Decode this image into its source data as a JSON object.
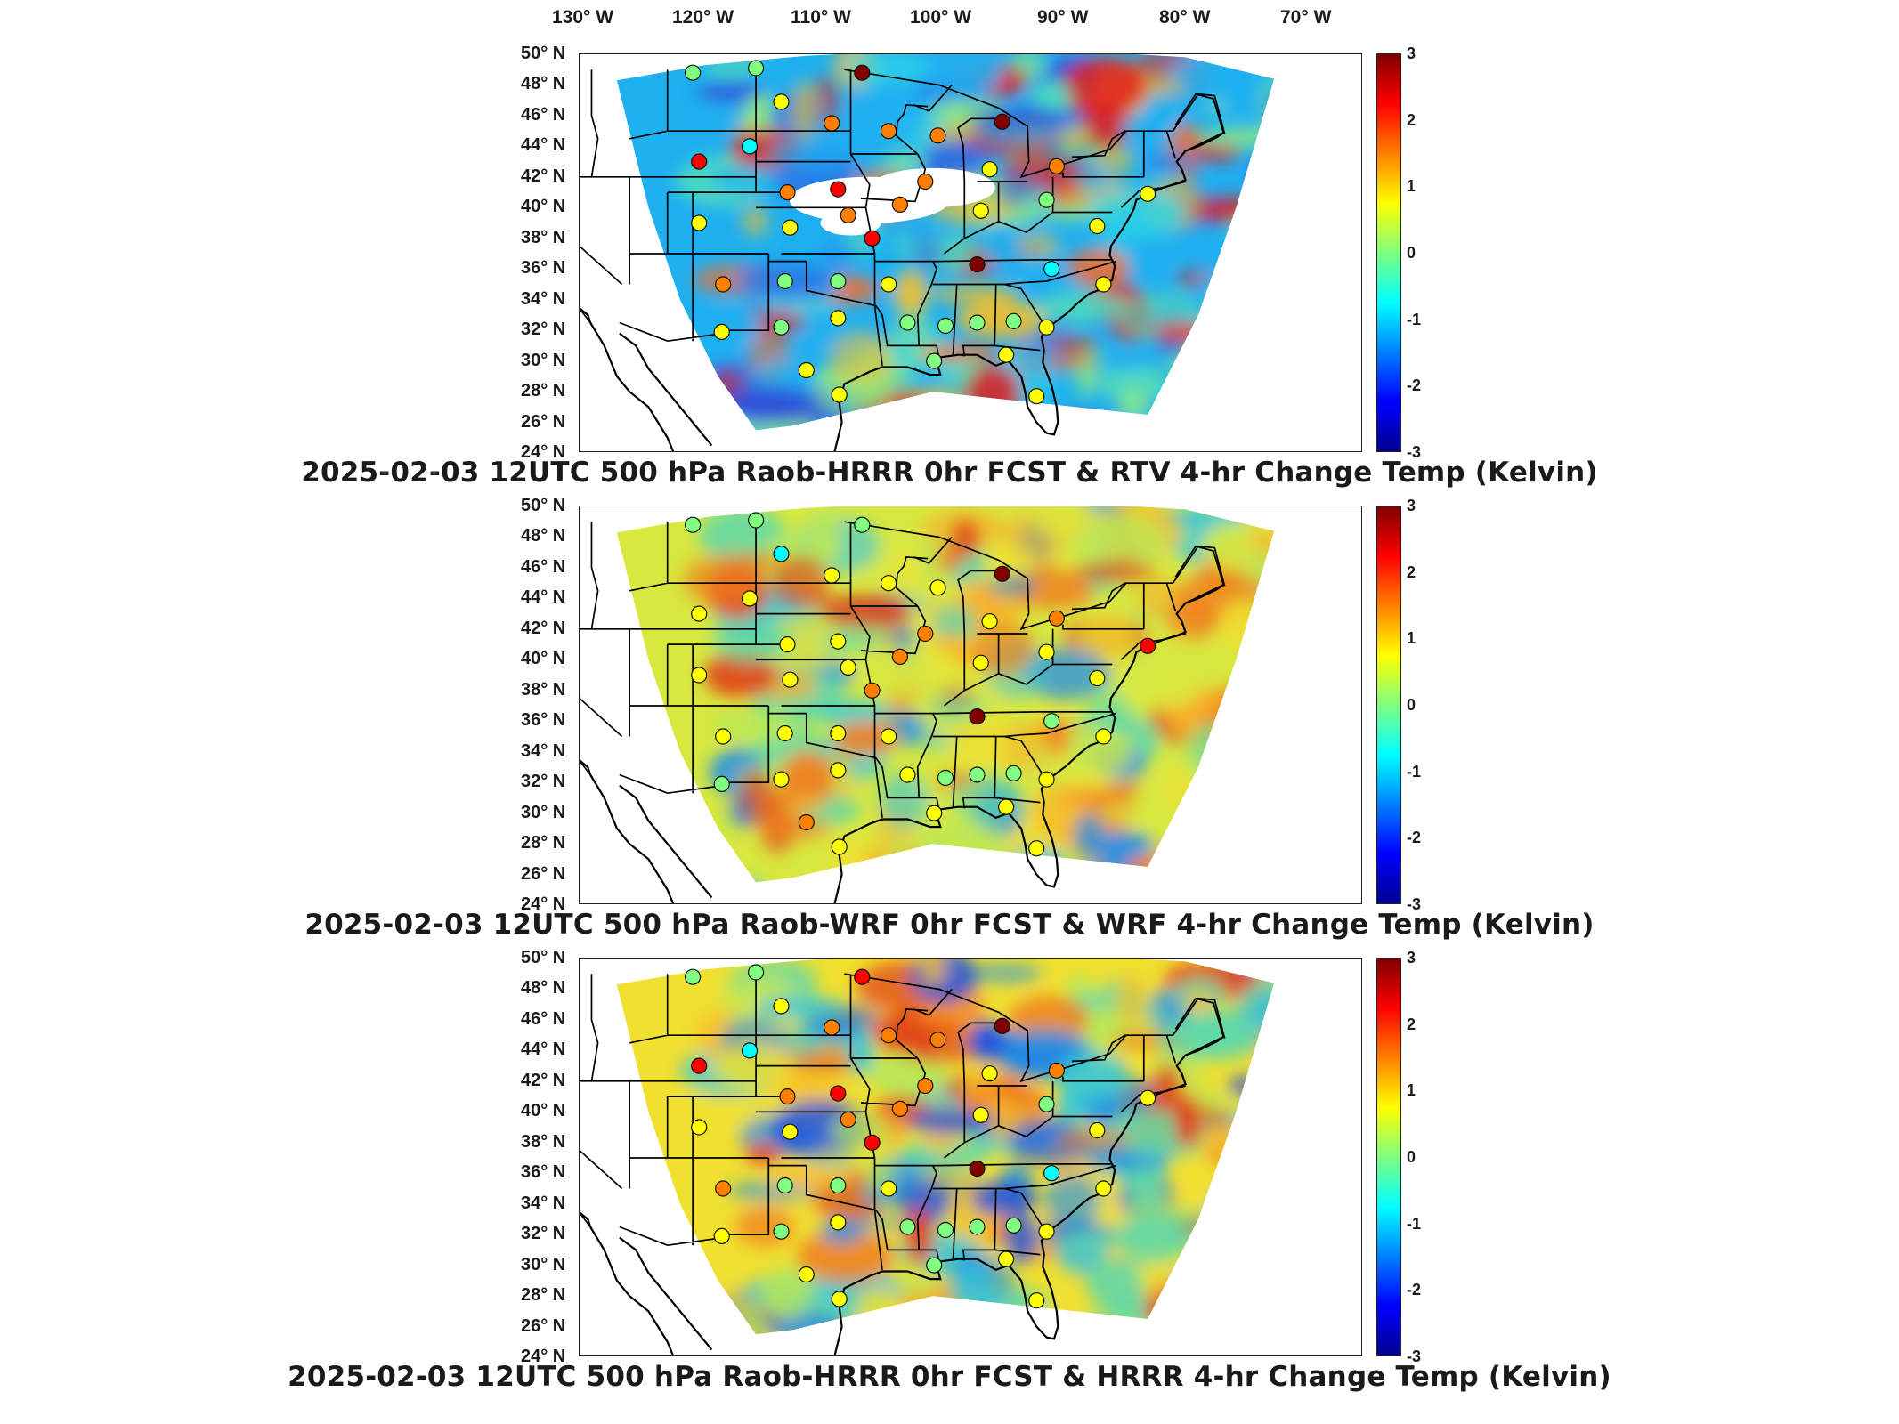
{
  "longitude_labels": [
    "130° W",
    "120° W",
    "110° W",
    "100° W",
    "90° W",
    "80° W",
    "70° W"
  ],
  "latitude_labels": [
    "50° N",
    "48° N",
    "46° N",
    "44° N",
    "42° N",
    "40° N",
    "38° N",
    "36° N",
    "34° N",
    "32° N",
    "30° N",
    "28° N",
    "26° N",
    "24° N"
  ],
  "colorbar": {
    "ticks": [
      "3",
      "2",
      "1",
      "0",
      "-1",
      "-2",
      "-3"
    ],
    "range": [
      -3,
      3
    ],
    "colormap": [
      "#00008f",
      "#0000ff",
      "#0080ff",
      "#00ffff",
      "#80ff80",
      "#ffff00",
      "#ff8000",
      "#ff0000",
      "#800000"
    ]
  },
  "panels": [
    {
      "title": "2025-02-03 12UTC 500 hPa Raob-HRRR 0hr FCST & RTV 4-hr Change Temp (Kelvin)",
      "background_palette": [
        "#1fb0f0",
        "#2cd4e6",
        "#58e0b4",
        "#8ee882",
        "#2a78e8",
        "#3050d8",
        "#f0c030",
        "#f07030",
        "#e02020"
      ],
      "white_void": true,
      "stations": [
        {
          "lon": -109,
          "lat": 48.8,
          "value": -0.2
        },
        {
          "lon": -104,
          "lat": 49.1,
          "value": 0.2
        },
        {
          "lon": -95.6,
          "lat": 48.8,
          "value": 2.8
        },
        {
          "lon": -102,
          "lat": 46.9,
          "value": 1.0
        },
        {
          "lon": -98,
          "lat": 45.5,
          "value": 1.6
        },
        {
          "lon": -93.5,
          "lat": 45.0,
          "value": 1.8
        },
        {
          "lon": -104.5,
          "lat": 44.0,
          "value": -0.8
        },
        {
          "lon": -108.5,
          "lat": 43.0,
          "value": 2.0
        },
        {
          "lon": -101.5,
          "lat": 41.0,
          "value": 1.8
        },
        {
          "lon": -97.5,
          "lat": 41.2,
          "value": 2.4
        },
        {
          "lon": -89.6,
          "lat": 44.7,
          "value": 1.2
        },
        {
          "lon": -84.5,
          "lat": 45.6,
          "value": 3.0
        },
        {
          "lon": -85.5,
          "lat": 42.5,
          "value": 1.0
        },
        {
          "lon": -80.2,
          "lat": 42.7,
          "value": 1.4
        },
        {
          "lon": -90.6,
          "lat": 41.7,
          "value": 1.4
        },
        {
          "lon": -86.2,
          "lat": 39.8,
          "value": 0.7
        },
        {
          "lon": -92.6,
          "lat": 40.2,
          "value": 1.8
        },
        {
          "lon": -96.7,
          "lat": 39.5,
          "value": 1.6
        },
        {
          "lon": -101.3,
          "lat": 38.7,
          "value": 0.8
        },
        {
          "lon": -94.8,
          "lat": 38.0,
          "value": 1.9
        },
        {
          "lon": -108.5,
          "lat": 39.0,
          "value": 1.0
        },
        {
          "lon": -81.0,
          "lat": 40.5,
          "value": 0.0
        },
        {
          "lon": -77.0,
          "lat": 38.8,
          "value": 0.4
        },
        {
          "lon": -86.5,
          "lat": 36.3,
          "value": 3.0
        },
        {
          "lon": -80.6,
          "lat": 36.0,
          "value": -0.4
        },
        {
          "lon": -93.5,
          "lat": 35.0,
          "value": 0.8
        },
        {
          "lon": -97.5,
          "lat": 35.2,
          "value": -0.3
        },
        {
          "lon": -101.7,
          "lat": 35.2,
          "value": -0.1
        },
        {
          "lon": -106.6,
          "lat": 35.0,
          "value": 1.6
        },
        {
          "lon": -97.5,
          "lat": 32.8,
          "value": 0.4
        },
        {
          "lon": -102,
          "lat": 32.2,
          "value": 0.2
        },
        {
          "lon": -106.7,
          "lat": 31.9,
          "value": 0.6
        },
        {
          "lon": -92.0,
          "lat": 32.5,
          "value": 0.3
        },
        {
          "lon": -89.0,
          "lat": 32.3,
          "value": -0.2
        },
        {
          "lon": -86.5,
          "lat": 32.5,
          "value": -0.1
        },
        {
          "lon": -83.6,
          "lat": 32.6,
          "value": 0.1
        },
        {
          "lon": -81.0,
          "lat": 32.2,
          "value": 0.9
        },
        {
          "lon": -84.2,
          "lat": 30.4,
          "value": 1.0
        },
        {
          "lon": -100,
          "lat": 29.4,
          "value": 0.8
        },
        {
          "lon": -97.4,
          "lat": 27.8,
          "value": 1.0
        },
        {
          "lon": -81.8,
          "lat": 27.7,
          "value": 0.8
        },
        {
          "lon": -89.9,
          "lat": 30.0,
          "value": 0.2
        },
        {
          "lon": -76.5,
          "lat": 35.0,
          "value": 0.6
        },
        {
          "lon": -73.0,
          "lat": 40.9,
          "value": 0.4
        }
      ]
    },
    {
      "title": "2025-02-03 12UTC 500 hPa Raob-WRF 0hr FCST & WRF 4-hr Change Temp (Kelvin)",
      "background_palette": [
        "#d8e840",
        "#f0e030",
        "#f8b028",
        "#f08020",
        "#e04018",
        "#b8e858",
        "#60d8a8",
        "#38c8d8",
        "#2090e8"
      ],
      "white_void": false,
      "stations": [
        {
          "lon": -109,
          "lat": 48.8,
          "value": 0.2
        },
        {
          "lon": -104,
          "lat": 49.1,
          "value": -0.3
        },
        {
          "lon": -95.6,
          "lat": 48.8,
          "value": 0.0
        },
        {
          "lon": -102,
          "lat": 46.9,
          "value": -1.0
        },
        {
          "lon": -98,
          "lat": 45.5,
          "value": 0.4
        },
        {
          "lon": -93.5,
          "lat": 45.0,
          "value": 0.6
        },
        {
          "lon": -104.5,
          "lat": 44.0,
          "value": 0.4
        },
        {
          "lon": -108.5,
          "lat": 43.0,
          "value": 0.4
        },
        {
          "lon": -101.5,
          "lat": 41.0,
          "value": 0.6
        },
        {
          "lon": -97.5,
          "lat": 41.2,
          "value": 1.0
        },
        {
          "lon": -89.6,
          "lat": 44.7,
          "value": 0.4
        },
        {
          "lon": -84.5,
          "lat": 45.6,
          "value": 3.0
        },
        {
          "lon": -85.5,
          "lat": 42.5,
          "value": 0.8
        },
        {
          "lon": -80.2,
          "lat": 42.7,
          "value": 1.6
        },
        {
          "lon": -90.6,
          "lat": 41.7,
          "value": 1.2
        },
        {
          "lon": -86.2,
          "lat": 39.8,
          "value": 0.8
        },
        {
          "lon": -92.6,
          "lat": 40.2,
          "value": 1.6
        },
        {
          "lon": -96.7,
          "lat": 39.5,
          "value": 0.8
        },
        {
          "lon": -101.3,
          "lat": 38.7,
          "value": 0.6
        },
        {
          "lon": -94.8,
          "lat": 38.0,
          "value": 1.6
        },
        {
          "lon": -108.5,
          "lat": 39.0,
          "value": 1.0
        },
        {
          "lon": -81.0,
          "lat": 40.5,
          "value": 0.4
        },
        {
          "lon": -77.0,
          "lat": 38.8,
          "value": 0.6
        },
        {
          "lon": -86.5,
          "lat": 36.3,
          "value": 3.0
        },
        {
          "lon": -80.6,
          "lat": 36.0,
          "value": 0.2
        },
        {
          "lon": -93.5,
          "lat": 35.0,
          "value": 0.8
        },
        {
          "lon": -97.5,
          "lat": 35.2,
          "value": 0.6
        },
        {
          "lon": -101.7,
          "lat": 35.2,
          "value": 0.8
        },
        {
          "lon": -106.6,
          "lat": 35.0,
          "value": 0.4
        },
        {
          "lon": -97.5,
          "lat": 32.8,
          "value": 1.0
        },
        {
          "lon": -102,
          "lat": 32.2,
          "value": 0.4
        },
        {
          "lon": -106.7,
          "lat": 31.9,
          "value": 0.2
        },
        {
          "lon": -92.0,
          "lat": 32.5,
          "value": 0.4
        },
        {
          "lon": -89.0,
          "lat": 32.3,
          "value": 0.2
        },
        {
          "lon": -86.5,
          "lat": 32.5,
          "value": 0.0
        },
        {
          "lon": -83.6,
          "lat": 32.6,
          "value": 0.2
        },
        {
          "lon": -81.0,
          "lat": 32.2,
          "value": 0.6
        },
        {
          "lon": -84.2,
          "lat": 30.4,
          "value": 0.8
        },
        {
          "lon": -100,
          "lat": 29.4,
          "value": 1.2
        },
        {
          "lon": -97.4,
          "lat": 27.8,
          "value": 0.8
        },
        {
          "lon": -81.8,
          "lat": 27.7,
          "value": 0.8
        },
        {
          "lon": -89.9,
          "lat": 30.0,
          "value": 0.4
        },
        {
          "lon": -76.5,
          "lat": 35.0,
          "value": 0.6
        },
        {
          "lon": -73.0,
          "lat": 40.9,
          "value": 2.2
        }
      ]
    },
    {
      "title": "2025-02-03 12UTC 500 hPa Raob-HRRR 0hr FCST & HRRR 4-hr Change Temp (Kelvin)",
      "background_palette": [
        "#f0e030",
        "#f8c028",
        "#f08020",
        "#e04018",
        "#b8e858",
        "#60d8a8",
        "#38c8d8",
        "#2090e8",
        "#2050e0"
      ],
      "white_void": false,
      "stations": [
        {
          "lon": -109,
          "lat": 48.8,
          "value": -0.2
        },
        {
          "lon": -104,
          "lat": 49.1,
          "value": 0.2
        },
        {
          "lon": -95.6,
          "lat": 48.8,
          "value": 2.6
        },
        {
          "lon": -102,
          "lat": 46.9,
          "value": 1.0
        },
        {
          "lon": -98,
          "lat": 45.5,
          "value": 1.6
        },
        {
          "lon": -93.5,
          "lat": 45.0,
          "value": 1.8
        },
        {
          "lon": -104.5,
          "lat": 44.0,
          "value": -0.8
        },
        {
          "lon": -108.5,
          "lat": 43.0,
          "value": 2.0
        },
        {
          "lon": -101.5,
          "lat": 41.0,
          "value": 1.8
        },
        {
          "lon": -97.5,
          "lat": 41.2,
          "value": 2.2
        },
        {
          "lon": -89.6,
          "lat": 44.7,
          "value": 1.2
        },
        {
          "lon": -84.5,
          "lat": 45.6,
          "value": 3.0
        },
        {
          "lon": -85.5,
          "lat": 42.5,
          "value": 1.0
        },
        {
          "lon": -80.2,
          "lat": 42.7,
          "value": 1.4
        },
        {
          "lon": -90.6,
          "lat": 41.7,
          "value": 1.4
        },
        {
          "lon": -86.2,
          "lat": 39.8,
          "value": 0.7
        },
        {
          "lon": -92.6,
          "lat": 40.2,
          "value": 1.8
        },
        {
          "lon": -96.7,
          "lat": 39.5,
          "value": 1.6
        },
        {
          "lon": -101.3,
          "lat": 38.7,
          "value": 0.8
        },
        {
          "lon": -94.8,
          "lat": 38.0,
          "value": 1.9
        },
        {
          "lon": -108.5,
          "lat": 39.0,
          "value": 1.0
        },
        {
          "lon": -81.0,
          "lat": 40.5,
          "value": 0.0
        },
        {
          "lon": -77.0,
          "lat": 38.8,
          "value": 0.4
        },
        {
          "lon": -86.5,
          "lat": 36.3,
          "value": 3.0
        },
        {
          "lon": -80.6,
          "lat": 36.0,
          "value": -0.4
        },
        {
          "lon": -93.5,
          "lat": 35.0,
          "value": 0.8
        },
        {
          "lon": -97.5,
          "lat": 35.2,
          "value": -0.3
        },
        {
          "lon": -101.7,
          "lat": 35.2,
          "value": -0.1
        },
        {
          "lon": -106.6,
          "lat": 35.0,
          "value": 1.6
        },
        {
          "lon": -97.5,
          "lat": 32.8,
          "value": 0.4
        },
        {
          "lon": -102,
          "lat": 32.2,
          "value": 0.2
        },
        {
          "lon": -106.7,
          "lat": 31.9,
          "value": 0.6
        },
        {
          "lon": -92.0,
          "lat": 32.5,
          "value": 0.3
        },
        {
          "lon": -89.0,
          "lat": 32.3,
          "value": -0.2
        },
        {
          "lon": -86.5,
          "lat": 32.5,
          "value": -0.1
        },
        {
          "lon": -83.6,
          "lat": 32.6,
          "value": 0.1
        },
        {
          "lon": -81.0,
          "lat": 32.2,
          "value": 0.9
        },
        {
          "lon": -84.2,
          "lat": 30.4,
          "value": 1.0
        },
        {
          "lon": -100,
          "lat": 29.4,
          "value": 0.8
        },
        {
          "lon": -97.4,
          "lat": 27.8,
          "value": 1.0
        },
        {
          "lon": -81.8,
          "lat": 27.7,
          "value": 0.8
        },
        {
          "lon": -89.9,
          "lat": 30.0,
          "value": 0.2
        },
        {
          "lon": -76.5,
          "lat": 35.0,
          "value": 0.6
        },
        {
          "lon": -73.0,
          "lat": 40.9,
          "value": 0.4
        }
      ]
    }
  ]
}
